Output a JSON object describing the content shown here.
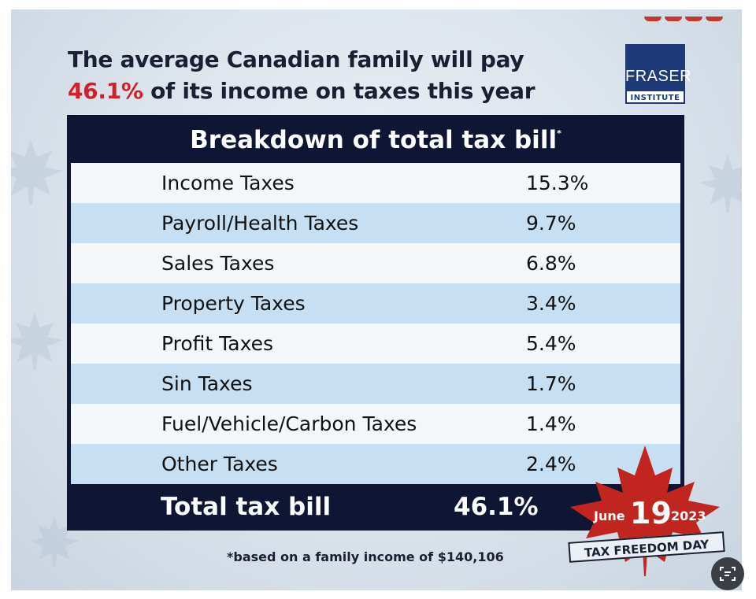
{
  "headline": {
    "line1": "The average Canadian family will pay",
    "highlight": "46.1%",
    "line2_rest": " of its income on taxes this year"
  },
  "logo": {
    "name": "FRASER",
    "sub": "INSTITUTE"
  },
  "table": {
    "title": "Breakdown of total tax bill",
    "title_mark": "*",
    "rows": [
      {
        "label": "Income Taxes",
        "value": "15.3%"
      },
      {
        "label": "Payroll/Health Taxes",
        "value": "9.7%"
      },
      {
        "label": "Sales Taxes",
        "value": "6.8%"
      },
      {
        "label": "Property Taxes",
        "value": "3.4%"
      },
      {
        "label": "Profit Taxes",
        "value": "5.4%"
      },
      {
        "label": "Sin Taxes",
        "value": "1.7%"
      },
      {
        "label": "Fuel/Vehicle/Carbon Taxes",
        "value": "1.4%"
      },
      {
        "label": "Other Taxes",
        "value": "2.4%"
      }
    ],
    "total": {
      "label": "Total tax bill",
      "value": "46.1%"
    }
  },
  "footnote": "*based on a family income of $140,106",
  "badge": {
    "month": "June",
    "day": "19",
    "year": "2023",
    "banner": "TAX FREEDOM DAY"
  },
  "colors": {
    "accent": "#d0202a",
    "navy": "#0e1634",
    "row_blue": "#c6dff2",
    "logo_blue": "#1f3a78"
  }
}
